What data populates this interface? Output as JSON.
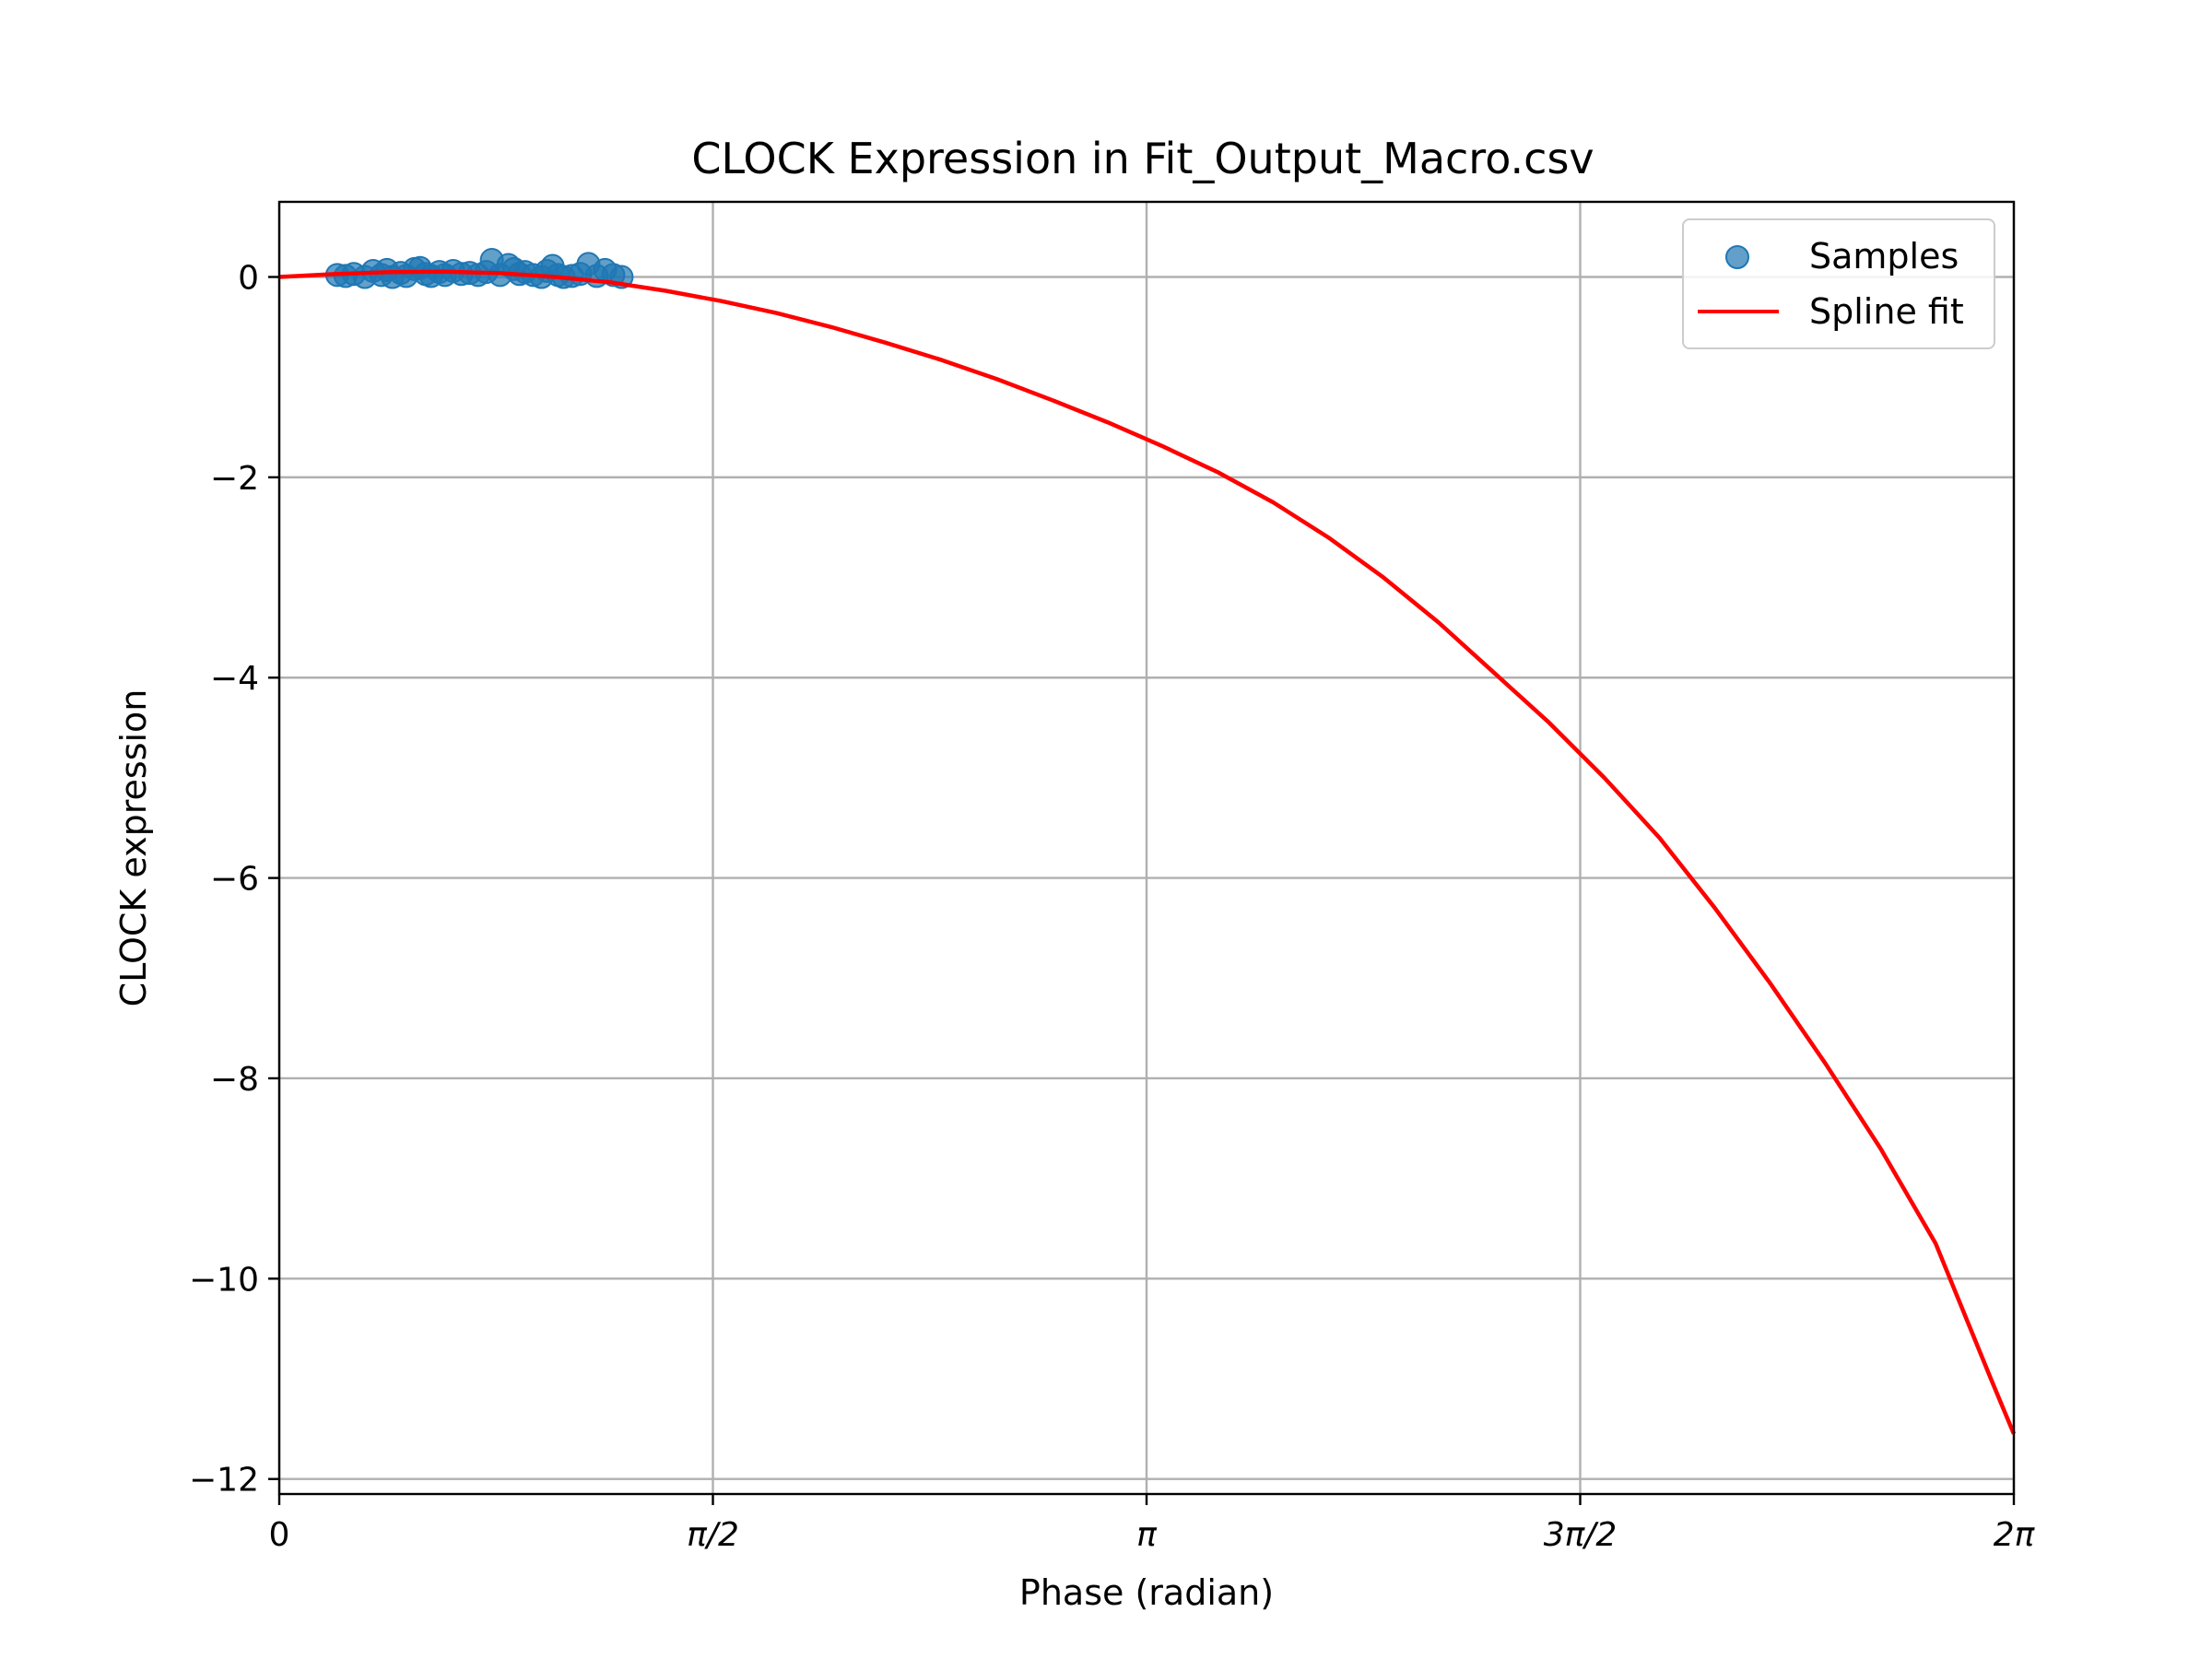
{
  "chart_data": {
    "type": "scatter",
    "title": "CLOCK Expression in Fit_Output_Macro.csv",
    "xlabel": "Phase (radian)",
    "ylabel": "CLOCK expression",
    "xlim": [
      0,
      6.2832
    ],
    "ylim": [
      -12.15,
      0.75
    ],
    "xticks": [
      {
        "value": 0,
        "label": "0"
      },
      {
        "value": 1.5708,
        "label": "π/2"
      },
      {
        "value": 3.1416,
        "label": "π"
      },
      {
        "value": 4.7124,
        "label": "3π/2"
      },
      {
        "value": 6.2832,
        "label": "2π"
      }
    ],
    "yticks": [
      {
        "value": 0,
        "label": "0"
      },
      {
        "value": -2,
        "label": "−2"
      },
      {
        "value": -4,
        "label": "−4"
      },
      {
        "value": -6,
        "label": "−6"
      },
      {
        "value": -8,
        "label": "−8"
      },
      {
        "value": -10,
        "label": "−10"
      },
      {
        "value": -12,
        "label": "−12"
      }
    ],
    "grid": true,
    "legend": {
      "placement": "top-right",
      "entries": [
        "Samples",
        "Spline fit"
      ]
    },
    "series": [
      {
        "name": "Samples",
        "kind": "scatter",
        "color": "#1f77b4",
        "x": [
          0.21,
          0.24,
          0.27,
          0.31,
          0.34,
          0.37,
          0.39,
          0.41,
          0.44,
          0.46,
          0.49,
          0.51,
          0.53,
          0.55,
          0.58,
          0.6,
          0.63,
          0.66,
          0.69,
          0.72,
          0.75,
          0.77,
          0.8,
          0.83,
          0.85,
          0.87,
          0.89,
          0.92,
          0.95,
          0.97,
          0.99,
          1.01,
          1.03,
          1.06,
          1.09,
          1.12,
          1.15,
          1.18,
          1.21,
          1.24
        ],
        "y": [
          0.02,
          0.01,
          0.03,
          0.0,
          0.06,
          0.02,
          0.07,
          0.0,
          0.04,
          0.01,
          0.08,
          0.09,
          0.03,
          0.01,
          0.05,
          0.02,
          0.06,
          0.03,
          0.04,
          0.02,
          0.05,
          0.17,
          0.02,
          0.12,
          0.08,
          0.03,
          0.05,
          0.02,
          0.0,
          0.06,
          0.11,
          0.02,
          0.0,
          0.01,
          0.03,
          0.13,
          0.01,
          0.07,
          0.02,
          0.0
        ]
      },
      {
        "name": "Spline fit",
        "kind": "line",
        "color": "#ff0000",
        "x": [
          0,
          0.2,
          0.4,
          0.6,
          0.8,
          1.0,
          1.2,
          1.4,
          1.6,
          1.8,
          2.0,
          2.2,
          2.4,
          2.6,
          2.8,
          3.0,
          3.2,
          3.4,
          3.6,
          3.8,
          4.0,
          4.2,
          4.4,
          4.6,
          4.8,
          5.0,
          5.2,
          5.4,
          5.6,
          5.8,
          6.0,
          6.2,
          6.2832
        ],
        "y": [
          0.0,
          0.029,
          0.048,
          0.053,
          0.038,
          0.0,
          -0.054,
          -0.138,
          -0.24,
          -0.36,
          -0.5,
          -0.66,
          -0.83,
          -1.02,
          -1.23,
          -1.45,
          -1.69,
          -1.95,
          -2.25,
          -2.6,
          -3.0,
          -3.45,
          -3.95,
          -4.45,
          -5.0,
          -5.6,
          -6.3,
          -7.05,
          -7.85,
          -8.7,
          -9.65,
          -11.0,
          -11.55
        ]
      }
    ]
  }
}
